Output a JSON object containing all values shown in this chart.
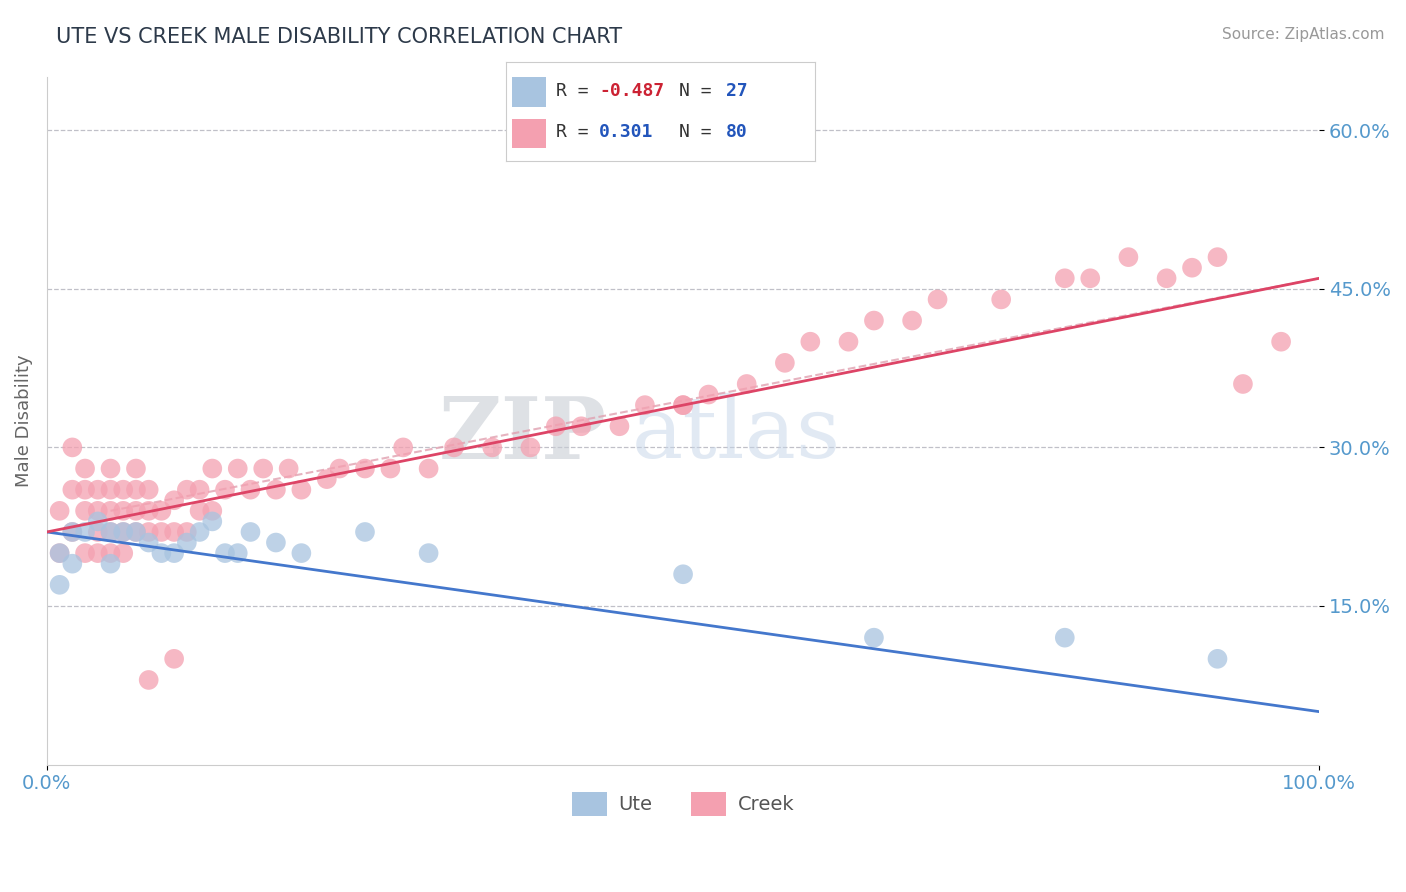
{
  "title": "UTE VS CREEK MALE DISABILITY CORRELATION CHART",
  "source": "Source: ZipAtlas.com",
  "xlabel": "",
  "ylabel": "Male Disability",
  "xlim": [
    0,
    100
  ],
  "ylim": [
    0,
    65
  ],
  "yticks": [
    15,
    30,
    45,
    60
  ],
  "ytick_labels": [
    "15.0%",
    "30.0%",
    "45.0%",
    "60.0%"
  ],
  "xticks": [
    0,
    100
  ],
  "xtick_labels": [
    "0.0%",
    "100.0%"
  ],
  "ute_color": "#a8c4e0",
  "creek_color": "#f4a0b0",
  "ute_R": -0.487,
  "ute_N": 27,
  "creek_R": 0.301,
  "creek_N": 80,
  "background_color": "#ffffff",
  "grid_color": "#c0c0c8",
  "title_color": "#2d3a4a",
  "axis_label_color": "#666666",
  "tick_color": "#5599cc",
  "watermark_zip": "ZIP",
  "watermark_atlas": "atlas",
  "ute_scatter_x": [
    1,
    1,
    2,
    2,
    3,
    4,
    5,
    5,
    6,
    7,
    8,
    9,
    10,
    11,
    12,
    13,
    14,
    15,
    16,
    18,
    20,
    25,
    30,
    50,
    65,
    80,
    92
  ],
  "ute_scatter_y": [
    20,
    17,
    22,
    19,
    22,
    23,
    22,
    19,
    22,
    22,
    21,
    20,
    20,
    21,
    22,
    23,
    20,
    20,
    22,
    21,
    20,
    22,
    20,
    18,
    12,
    12,
    10
  ],
  "creek_scatter_x": [
    1,
    1,
    2,
    2,
    2,
    3,
    3,
    3,
    3,
    4,
    4,
    4,
    4,
    5,
    5,
    5,
    5,
    5,
    6,
    6,
    6,
    6,
    7,
    7,
    7,
    7,
    8,
    8,
    8,
    9,
    9,
    10,
    10,
    11,
    11,
    12,
    12,
    13,
    13,
    14,
    15,
    16,
    17,
    18,
    19,
    20,
    22,
    23,
    25,
    27,
    28,
    30,
    32,
    35,
    38,
    40,
    42,
    45,
    47,
    50,
    52,
    55,
    58,
    60,
    63,
    65,
    68,
    70,
    75,
    80,
    82,
    85,
    88,
    90,
    92,
    94,
    97,
    8,
    10,
    50
  ],
  "creek_scatter_y": [
    20,
    24,
    22,
    26,
    30,
    20,
    24,
    26,
    28,
    20,
    22,
    24,
    26,
    20,
    22,
    24,
    26,
    28,
    20,
    22,
    24,
    26,
    22,
    24,
    26,
    28,
    22,
    24,
    26,
    22,
    24,
    22,
    25,
    22,
    26,
    24,
    26,
    24,
    28,
    26,
    28,
    26,
    28,
    26,
    28,
    26,
    27,
    28,
    28,
    28,
    30,
    28,
    30,
    30,
    30,
    32,
    32,
    32,
    34,
    34,
    35,
    36,
    38,
    40,
    40,
    42,
    42,
    44,
    44,
    46,
    46,
    48,
    46,
    47,
    48,
    36,
    40,
    8,
    10,
    34
  ],
  "ute_line_x0": 0,
  "ute_line_x1": 100,
  "ute_line_y0": 22,
  "ute_line_y1": 5,
  "creek_line_x0": 0,
  "creek_line_x1": 100,
  "creek_line_y0": 22,
  "creek_line_y1": 46,
  "dashed_line_x0": 5,
  "dashed_line_x1": 100,
  "dashed_line_y0": 24,
  "dashed_line_y1": 46,
  "legend_ute_label": "R = -0.487  N = 27",
  "legend_creek_label": "R =  0.301  N = 80"
}
